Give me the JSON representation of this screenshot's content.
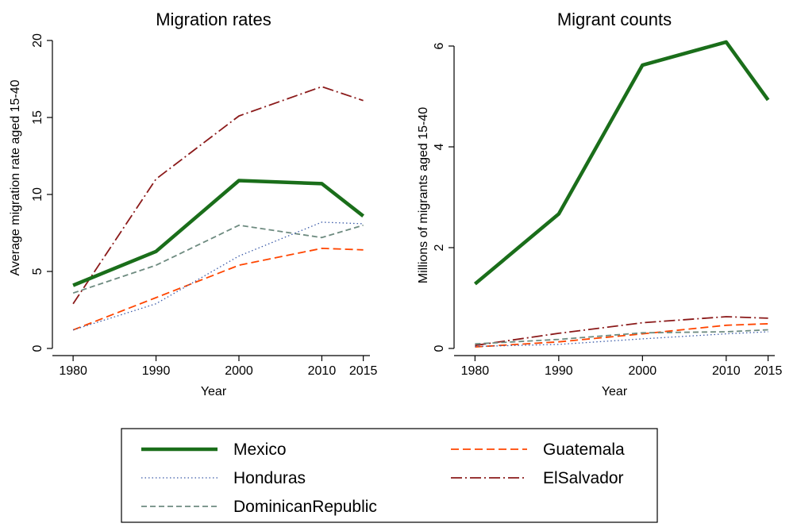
{
  "chart_data": [
    {
      "type": "line",
      "title": "Migration rates",
      "xlabel": "Year",
      "ylabel": "Average migration rate aged 15-40",
      "x": [
        1980,
        1990,
        2000,
        2010,
        2015
      ],
      "xticks": [
        "1980",
        "1990",
        "2000",
        "2010",
        "2015"
      ],
      "ylim": [
        0,
        20
      ],
      "yticks": [
        "0",
        "5",
        "10",
        "15",
        "20"
      ],
      "grid": false,
      "series": [
        {
          "name": "Mexico",
          "values": [
            4.1,
            6.3,
            10.9,
            10.7,
            8.6
          ]
        },
        {
          "name": "Honduras",
          "values": [
            1.2,
            2.9,
            6.0,
            8.2,
            8.1
          ]
        },
        {
          "name": "DominicanRepublic",
          "values": [
            3.6,
            5.4,
            8.0,
            7.2,
            8.0
          ]
        },
        {
          "name": "Guatemala",
          "values": [
            1.2,
            3.3,
            5.4,
            6.5,
            6.4
          ]
        },
        {
          "name": "ElSalvador",
          "values": [
            2.9,
            11.0,
            15.1,
            17.0,
            16.1
          ]
        }
      ]
    },
    {
      "type": "line",
      "title": "Migrant counts",
      "xlabel": "Year",
      "ylabel": "Millions of migrants aged 15-40",
      "x": [
        1980,
        1990,
        2000,
        2010,
        2015
      ],
      "xticks": [
        "1980",
        "1990",
        "2000",
        "2010",
        "2015"
      ],
      "ylim": [
        0,
        6
      ],
      "yticks": [
        "0",
        "2",
        "4",
        "6"
      ],
      "grid": false,
      "series": [
        {
          "name": "Mexico",
          "values": [
            1.28,
            2.67,
            5.62,
            6.08,
            4.93
          ]
        },
        {
          "name": "Honduras",
          "values": [
            0.04,
            0.08,
            0.19,
            0.29,
            0.33
          ]
        },
        {
          "name": "DominicanRepublic",
          "values": [
            0.09,
            0.18,
            0.31,
            0.33,
            0.37
          ]
        },
        {
          "name": "Guatemala",
          "values": [
            0.03,
            0.13,
            0.29,
            0.46,
            0.49
          ]
        },
        {
          "name": "ElSalvador",
          "values": [
            0.06,
            0.3,
            0.51,
            0.63,
            0.6
          ]
        }
      ]
    }
  ],
  "legend": {
    "placement": "bottom",
    "items": [
      {
        "name": "Mexico",
        "color": "#1a6e1a"
      },
      {
        "name": "Guatemala",
        "color": "#ff4500"
      },
      {
        "name": "Honduras",
        "color": "#3a5aa8"
      },
      {
        "name": "ElSalvador",
        "color": "#8b1a1a"
      },
      {
        "name": "DominicanRepublic",
        "color": "#6e8b80"
      }
    ]
  },
  "colors": {
    "Mexico": "#1a6e1a",
    "Honduras": "#3a5aa8",
    "DominicanRepublic": "#6e8b80",
    "Guatemala": "#ff4500",
    "ElSalvador": "#8b1a1a"
  }
}
